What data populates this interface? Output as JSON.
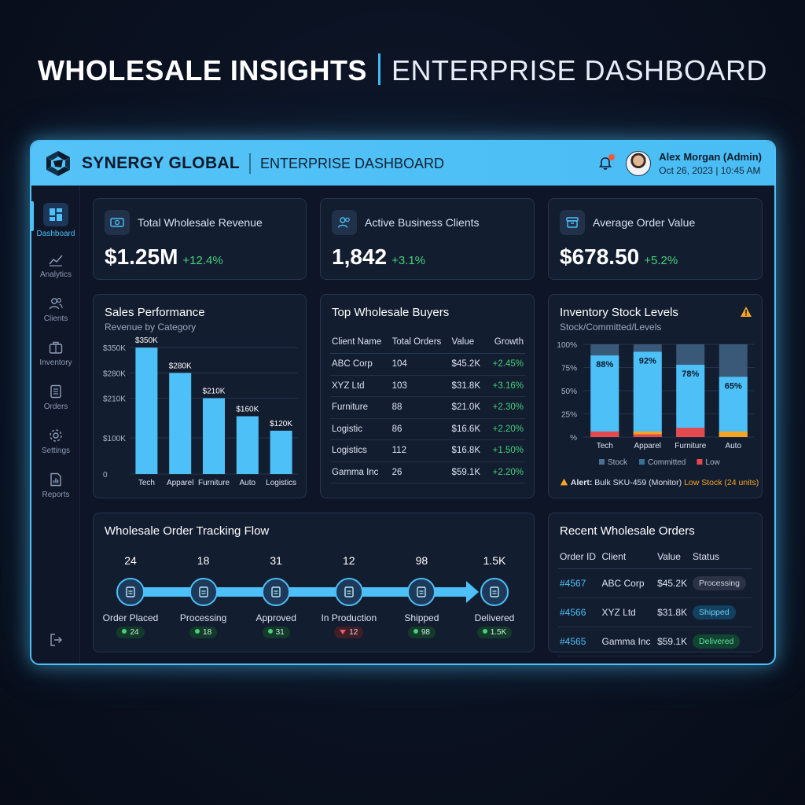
{
  "hero": {
    "title_bold": "WHOLESALE INSIGHTS",
    "title_light": "ENTERPRISE DASHBOARD"
  },
  "header": {
    "brand": "SYNERGY GLOBAL",
    "subtitle": "ENTERPRISE DASHBOARD",
    "user_name": "Alex Morgan (Admin)",
    "user_date": "Oct 26, 2023 | 10:45 AM"
  },
  "sidebar": {
    "items": [
      {
        "label": "Dashboard",
        "icon": "dashboard-icon"
      },
      {
        "label": "Analytics",
        "icon": "analytics-icon"
      },
      {
        "label": "Clients",
        "icon": "clients-icon"
      },
      {
        "label": "Inventory",
        "icon": "inventory-icon"
      },
      {
        "label": "Orders",
        "icon": "orders-icon"
      },
      {
        "label": "Settings",
        "icon": "gear-icon"
      },
      {
        "label": "Reports",
        "icon": "reports-icon"
      }
    ]
  },
  "kpis": [
    {
      "label": "Total Wholesale Revenue",
      "value": "$1.25M",
      "delta": "+12.4%"
    },
    {
      "label": "Active Business Clients",
      "value": "1,842",
      "delta": "+3.1%"
    },
    {
      "label": "Average Order Value",
      "value": "$678.50",
      "delta": "+5.2%"
    }
  ],
  "sales": {
    "title": "Sales Performance",
    "subtitle": "Revenue by Category"
  },
  "buyers": {
    "title": "Top Wholesale Buyers",
    "columns": [
      "Client Name",
      "Total Orders",
      "Value",
      "Growth"
    ],
    "rows": [
      [
        "ABC Corp",
        "104",
        "$45.2K",
        "+2.45%"
      ],
      [
        "XYZ Ltd",
        "103",
        "$31.8K",
        "+3.16%"
      ],
      [
        "Furniture",
        "88",
        "$21.0K",
        "+2.30%"
      ],
      [
        "Logistic",
        "86",
        "$16.6K",
        "+2.20%"
      ],
      [
        "Logistics",
        "112",
        "$16.8K",
        "+1.50%"
      ],
      [
        "Gamma Inc",
        "26",
        "$59.1K",
        "+2.20%"
      ]
    ]
  },
  "inventory": {
    "title": "Inventory Stock Levels",
    "subtitle": "Stock/Committed/Levels",
    "alert_prefix": "Alert:",
    "alert_text": "Bulk SKU-459 (Monitor)",
    "alert_highlight": "Low Stock (24 units)"
  },
  "flow": {
    "title": "Wholesale Order Tracking Flow",
    "steps": [
      {
        "count": "24",
        "label": "Order Placed",
        "chip": "24",
        "status": "up"
      },
      {
        "count": "18",
        "label": "Processing",
        "chip": "18",
        "status": "up"
      },
      {
        "count": "31",
        "label": "Approved",
        "chip": "31",
        "status": "up"
      },
      {
        "count": "12",
        "label": "In Production",
        "chip": "12",
        "status": "down"
      },
      {
        "count": "98",
        "label": "Shipped",
        "chip": "98",
        "status": "up"
      },
      {
        "count": "1.5K",
        "label": "Delivered",
        "chip": "1.5K",
        "status": "up"
      }
    ]
  },
  "recent": {
    "title": "Recent Wholesale Orders",
    "columns": [
      "Order ID",
      "Client",
      "Value",
      "Status"
    ],
    "rows": [
      {
        "id": "#4567",
        "client": "ABC Corp",
        "value": "$45.2K",
        "status": "Processing",
        "kind": "processing"
      },
      {
        "id": "#4566",
        "client": "XYZ Ltd",
        "value": "$31.8K",
        "status": "Shipped",
        "kind": "shipped"
      },
      {
        "id": "#4565",
        "client": "Gamma Inc",
        "value": "$59.1K",
        "status": "Delivered",
        "kind": "delivered"
      }
    ]
  },
  "colors": {
    "accent": "#4cc0f7",
    "positive": "#43d17a",
    "low": "#e5484d",
    "committed": "#f5a524",
    "stock_track": "#3a5878"
  },
  "chart_data": [
    {
      "type": "bar",
      "title": "Sales Performance",
      "subtitle": "Revenue by Category",
      "categories": [
        "Tech",
        "Apparel",
        "Furniture",
        "Auto",
        "Logistics"
      ],
      "values": [
        350,
        280,
        210,
        160,
        120
      ],
      "data_labels": [
        "$350K",
        "$280K",
        "$210K",
        "$160K",
        "$120K"
      ],
      "y_ticks": [
        "0",
        "$100K",
        "$210K",
        "$280K",
        "$350K"
      ],
      "y_tick_values": [
        0,
        100,
        210,
        280,
        350
      ],
      "ylim": [
        0,
        370
      ],
      "grid": true
    },
    {
      "type": "bar",
      "title": "Inventory Stock Levels",
      "subtitle": "Stock/Committed/Levels",
      "categories": [
        "Tech",
        "Apparel",
        "Furniture",
        "Auto"
      ],
      "series": [
        {
          "name": "Stock",
          "values": [
            88,
            92,
            78,
            65
          ]
        },
        {
          "name": "Committed",
          "values": [
            0,
            3,
            0,
            6
          ]
        },
        {
          "name": "Low",
          "values": [
            6,
            3,
            10,
            0
          ]
        }
      ],
      "data_labels": [
        "88%",
        "92%",
        "78%",
        "65%"
      ],
      "y_ticks": [
        "%",
        "25%",
        "50%",
        "75%",
        "100%"
      ],
      "y_tick_values": [
        0,
        25,
        50,
        75,
        100
      ],
      "ylim": [
        0,
        100
      ],
      "legend": "bottom",
      "grid": true
    }
  ]
}
